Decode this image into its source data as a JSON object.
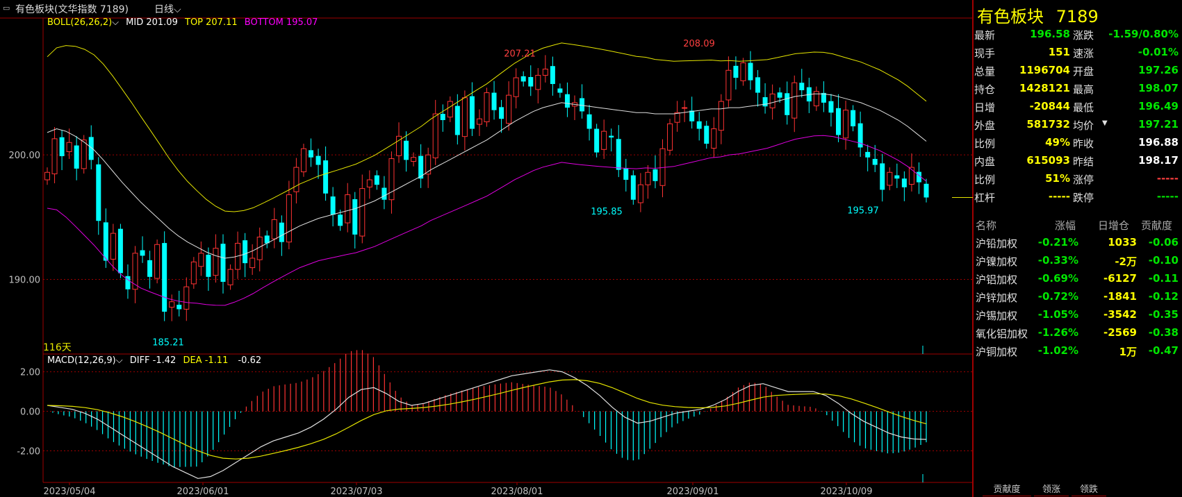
{
  "window": {
    "title": "有色板块(文华指数 7189)",
    "period": "日线"
  },
  "indicators": {
    "boll_name": "BOLL(26,26,2)",
    "boll_mid": "MID 201.09",
    "boll_top": "TOP 207.11",
    "boll_bottom": "BOTTOM 195.07",
    "macd_name": "MACD(12,26,9)",
    "macd_diff": "DIFF -1.42",
    "macd_dea": "DEA -1.11",
    "macd_val": "-0.62",
    "days": "116天"
  },
  "price_axis": [
    "200.00",
    "190.00"
  ],
  "macd_axis": [
    "2.00",
    "0.00",
    "-2.00"
  ],
  "date_axis": [
    "2023/05/04",
    "2023/06/01",
    "2023/07/03",
    "2023/08/01",
    "2023/09/01",
    "2023/10/09"
  ],
  "annotations": [
    {
      "text": "207.21",
      "color": "#ff4040"
    },
    {
      "text": "208.09",
      "color": "#ff4040"
    },
    {
      "text": "185.21",
      "color": "#00ffff"
    },
    {
      "text": "195.85",
      "color": "#00ffff"
    },
    {
      "text": "195.97",
      "color": "#00ffff"
    }
  ],
  "colors": {
    "up": "#ff3333",
    "down": "#00ffff",
    "boll_top": "#e6e600",
    "boll_mid": "#e0e0e0",
    "boll_bottom": "#e000e0",
    "grid": "#a00000"
  },
  "quote": {
    "title": "有色板块",
    "code": "7189",
    "rows": [
      {
        "l1": "最新",
        "v1": "196.58",
        "c1": "c-green",
        "l2": "涨跌",
        "v2": "-1.59/0.80%",
        "c2": "c-green"
      },
      {
        "l1": "现手",
        "v1": "151",
        "c1": "c-yellow",
        "l2": "速涨",
        "v2": "-0.01%",
        "c2": "c-green"
      },
      {
        "l1": "总量",
        "v1": "1196704",
        "c1": "c-yellow",
        "l2": "开盘",
        "v2": "197.26",
        "c2": "c-green"
      },
      {
        "l1": "持仓",
        "v1": "1428121",
        "c1": "c-yellow",
        "l2": "最高",
        "v2": "198.07",
        "c2": "c-green"
      },
      {
        "l1": "日增",
        "v1": "-20844",
        "c1": "c-yellow",
        "l2": "最低",
        "v2": "196.49",
        "c2": "c-green"
      },
      {
        "l1": "外盘",
        "v1": "581732",
        "c1": "c-yellow",
        "l2": "均价",
        "v2": "197.21",
        "c2": "c-green"
      },
      {
        "l1": "比例",
        "v1": "49%",
        "c1": "c-yellow",
        "l2": "昨收",
        "v2": "196.88",
        "c2": "c-white"
      },
      {
        "l1": "内盘",
        "v1": "615093",
        "c1": "c-yellow",
        "l2": "昨结",
        "v2": "198.17",
        "c2": "c-white"
      },
      {
        "l1": "比例",
        "v1": "51%",
        "c1": "c-yellow",
        "l2": "涨停",
        "v2": "-----",
        "c2": "c-red"
      },
      {
        "l1": "杠杆",
        "v1": "-----",
        "c1": "c-yellow",
        "l2": "跌停",
        "v2": "-----",
        "c2": "c-green"
      }
    ]
  },
  "components": {
    "headers": [
      "名称",
      "涨幅",
      "日增仓",
      "贡献度"
    ],
    "rows": [
      {
        "name": "沪铅加权",
        "change": "-0.21%",
        "oi": "1033",
        "contrib": "-0.06"
      },
      {
        "name": "沪镍加权",
        "change": "-0.33%",
        "oi": "-2万",
        "contrib": "-0.10"
      },
      {
        "name": "沪铝加权",
        "change": "-0.69%",
        "oi": "-6127",
        "contrib": "-0.11"
      },
      {
        "name": "沪锌加权",
        "change": "-0.72%",
        "oi": "-1841",
        "contrib": "-0.12"
      },
      {
        "name": "沪锡加权",
        "change": "-1.05%",
        "oi": "-3542",
        "contrib": "-0.35"
      },
      {
        "name": "氧化铝加权",
        "change": "-1.26%",
        "oi": "-2569",
        "contrib": "-0.38"
      },
      {
        "name": "沪铜加权",
        "change": "-1.02%",
        "oi": "1万",
        "contrib": "-0.47"
      }
    ]
  },
  "tabs": [
    "贡献度",
    "领涨",
    "领跌"
  ],
  "chart_data": {
    "type": "candlestick",
    "price_range": [
      184,
      211
    ],
    "macd_range": [
      -3.6,
      2.9
    ],
    "closes": [
      198.6,
      201.3,
      199.9,
      201.0,
      198.9,
      201.2,
      199.6,
      194.7,
      191.5,
      193.7,
      190.5,
      189.2,
      192.1,
      191.9,
      190.2,
      192.8,
      187.4,
      188.2,
      187.6,
      189.4,
      191.4,
      192.1,
      190.2,
      192.5,
      189.8,
      190.8,
      192.9,
      191.3,
      191.7,
      193.4,
      192.9,
      194.8,
      193.0,
      196.8,
      199.0,
      200.5,
      199.8,
      199.2,
      196.9,
      195.2,
      194.3,
      196.8,
      193.6,
      197.3,
      198.0,
      197.6,
      196.4,
      199.7,
      201.5,
      199.6,
      199.8,
      198.1,
      200.0,
      203.3,
      202.8,
      204.3,
      201.6,
      204.6,
      202.1,
      202.9,
      205.0,
      203.6,
      202.9,
      204.8,
      206.2,
      205.9,
      205.5,
      206.4,
      206.9,
      205.7,
      205.0,
      203.8,
      204.2,
      203.5,
      202.1,
      200.2,
      201.9,
      201.4,
      198.8,
      198.0,
      196.4,
      197.6,
      198.6,
      197.9,
      200.5,
      202.5,
      203.4,
      203.8,
      202.7,
      202.1,
      200.9,
      202.1,
      204.3,
      206.8,
      206.2,
      207.4,
      206.0,
      205.0,
      203.9,
      204.9,
      204.6,
      203.2,
      205.8,
      205.2,
      204.3,
      205.1,
      204.2,
      203.4,
      201.6,
      203.6,
      202.3,
      200.6,
      199.8,
      199.2,
      197.2,
      198.6,
      198.1,
      197.4,
      199.0,
      197.8,
      196.58
    ],
    "mid": [
      201.8,
      202.1,
      201.9,
      201.5,
      201.0,
      200.4,
      199.6,
      198.7,
      197.8,
      197.0,
      196.2,
      195.5,
      194.8,
      194.1,
      193.5,
      193.0,
      192.6,
      192.2,
      191.9,
      191.7,
      191.8,
      192.0,
      192.3,
      192.7,
      193.1,
      193.5,
      193.9,
      194.3,
      194.6,
      194.9,
      195.1,
      195.3,
      195.5,
      195.7,
      196.0,
      196.3,
      196.7,
      197.1,
      197.5,
      197.9,
      198.3,
      198.8,
      199.2,
      199.6,
      200.0,
      200.4,
      200.8,
      201.2,
      201.7,
      202.2,
      202.7,
      203.1,
      203.5,
      203.8,
      204.0,
      204.2,
      204.1,
      204.0,
      203.9,
      203.8,
      203.7,
      203.6,
      203.5,
      203.4,
      203.4,
      203.3,
      203.3,
      203.3,
      203.4,
      203.5,
      203.6,
      203.7,
      203.7,
      203.8,
      203.8,
      203.9,
      204.0,
      204.1,
      204.3,
      204.5,
      204.7,
      204.8,
      204.9,
      204.9,
      204.8,
      204.6,
      204.4,
      204.2,
      203.9,
      203.6,
      203.2,
      202.8,
      202.3,
      201.7,
      201.1
    ],
    "diff": [
      0.3,
      0.2,
      0.1,
      -0.1,
      -0.4,
      -0.8,
      -1.2,
      -1.6,
      -2.0,
      -2.4,
      -2.8,
      -3.1,
      -3.4,
      -3.3,
      -3.0,
      -2.6,
      -2.2,
      -1.8,
      -1.5,
      -1.3,
      -1.1,
      -0.8,
      -0.4,
      0.1,
      0.7,
      1.1,
      1.2,
      0.9,
      0.5,
      0.3,
      0.4,
      0.6,
      0.8,
      1.0,
      1.2,
      1.4,
      1.6,
      1.8,
      1.9,
      2.0,
      2.1,
      2.0,
      1.7,
      1.3,
      0.8,
      0.2,
      -0.3,
      -0.6,
      -0.5,
      -0.3,
      -0.1,
      0.0,
      0.1,
      0.3,
      0.6,
      1.0,
      1.3,
      1.4,
      1.2,
      1.0,
      1.0,
      1.0,
      0.8,
      0.4,
      -0.1,
      -0.5,
      -0.8,
      -1.1,
      -1.3,
      -1.4,
      -1.42
    ]
  }
}
